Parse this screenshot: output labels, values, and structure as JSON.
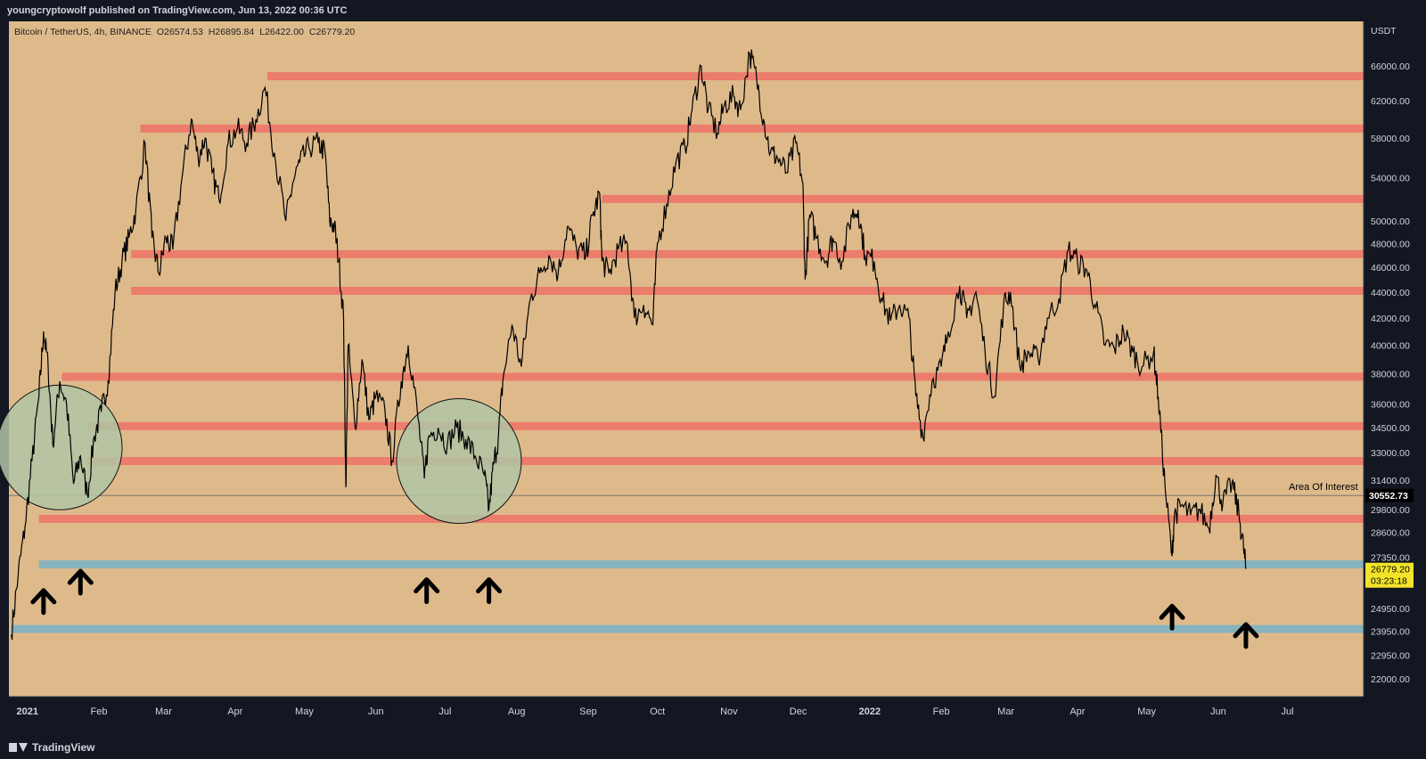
{
  "header": {
    "published_by": "youngcryptowolf published on TradingView.com, Jun 13, 2022 00:36 UTC"
  },
  "footer": {
    "brand": "TradingView"
  },
  "chart_data": {
    "type": "line",
    "symbol_line": {
      "name": "Bitcoin / TetherUS, 4h, BINANCE",
      "open": "O26574.53",
      "high": "H26895.84",
      "low": "L26422.00",
      "close": "C26779.20"
    },
    "y_axis": {
      "unit_label": "USDT",
      "scale": "log",
      "range": [
        21300,
        71500
      ],
      "ticks": [
        66000,
        62000,
        58000,
        54000,
        50000,
        48000,
        46000,
        44000,
        42000,
        40000,
        38000,
        36000,
        34500,
        33000,
        31400,
        29800,
        28600,
        27350,
        24950,
        23950,
        22950,
        22000
      ]
    },
    "x_axis": {
      "range": [
        "2020-12-24",
        "2022-08-03"
      ],
      "ticks": [
        {
          "date": "2021-01-01",
          "label": "2021",
          "bold": true
        },
        {
          "date": "2021-02-01",
          "label": "Feb"
        },
        {
          "date": "2021-03-01",
          "label": "Mar"
        },
        {
          "date": "2021-04-01",
          "label": "Apr"
        },
        {
          "date": "2021-05-01",
          "label": "May"
        },
        {
          "date": "2021-06-01",
          "label": "Jun"
        },
        {
          "date": "2021-07-01",
          "label": "Jul"
        },
        {
          "date": "2021-08-01",
          "label": "Aug"
        },
        {
          "date": "2021-09-01",
          "label": "Sep"
        },
        {
          "date": "2021-10-01",
          "label": "Oct"
        },
        {
          "date": "2021-11-01",
          "label": "Nov"
        },
        {
          "date": "2021-12-01",
          "label": "Dec"
        },
        {
          "date": "2022-01-01",
          "label": "2022",
          "bold": true
        },
        {
          "date": "2022-02-01",
          "label": "Feb"
        },
        {
          "date": "2022-03-01",
          "label": "Mar"
        },
        {
          "date": "2022-04-01",
          "label": "Apr"
        },
        {
          "date": "2022-05-01",
          "label": "May"
        },
        {
          "date": "2022-06-01",
          "label": "Jun"
        },
        {
          "date": "2022-07-01",
          "label": "Jul"
        }
      ]
    },
    "series": [
      {
        "values": [
          [
            "2020-12-25",
            23800
          ],
          [
            "2020-12-28",
            26500
          ],
          [
            "2020-12-31",
            28900
          ],
          [
            "2021-01-03",
            32500
          ],
          [
            "2021-01-06",
            36500
          ],
          [
            "2021-01-08",
            41000
          ],
          [
            "2021-01-10",
            38500
          ],
          [
            "2021-01-12",
            33500
          ],
          [
            "2021-01-15",
            37500
          ],
          [
            "2021-01-18",
            36000
          ],
          [
            "2021-01-21",
            31200
          ],
          [
            "2021-01-24",
            32800
          ],
          [
            "2021-01-27",
            30600
          ],
          [
            "2021-01-30",
            34000
          ],
          [
            "2021-02-02",
            35500
          ],
          [
            "2021-02-05",
            37500
          ],
          [
            "2021-02-08",
            44000
          ],
          [
            "2021-02-11",
            46500
          ],
          [
            "2021-02-14",
            48500
          ],
          [
            "2021-02-17",
            51000
          ],
          [
            "2021-02-21",
            57500
          ],
          [
            "2021-02-24",
            48500
          ],
          [
            "2021-02-27",
            45500
          ],
          [
            "2021-03-02",
            48500
          ],
          [
            "2021-03-05",
            47500
          ],
          [
            "2021-03-09",
            54000
          ],
          [
            "2021-03-13",
            60000
          ],
          [
            "2021-03-16",
            56000
          ],
          [
            "2021-03-19",
            58000
          ],
          [
            "2021-03-22",
            54500
          ],
          [
            "2021-03-25",
            52000
          ],
          [
            "2021-03-29",
            57500
          ],
          [
            "2021-04-02",
            59000
          ],
          [
            "2021-04-06",
            57500
          ],
          [
            "2021-04-10",
            60000
          ],
          [
            "2021-04-14",
            63500
          ],
          [
            "2021-04-18",
            56500
          ],
          [
            "2021-04-23",
            50000
          ],
          [
            "2021-04-26",
            53500
          ],
          [
            "2021-04-29",
            55500
          ],
          [
            "2021-05-03",
            57000
          ],
          [
            "2021-05-07",
            57500
          ],
          [
            "2021-05-10",
            56500
          ],
          [
            "2021-05-12",
            50000
          ],
          [
            "2021-05-14",
            49500
          ],
          [
            "2021-05-16",
            46500
          ],
          [
            "2021-05-18",
            42000
          ],
          [
            "2021-05-19",
            31000
          ],
          [
            "2021-05-20",
            40000
          ],
          [
            "2021-05-23",
            34500
          ],
          [
            "2021-05-26",
            39000
          ],
          [
            "2021-05-29",
            35000
          ],
          [
            "2021-06-01",
            36500
          ],
          [
            "2021-06-05",
            35500
          ],
          [
            "2021-06-08",
            32500
          ],
          [
            "2021-06-12",
            37500
          ],
          [
            "2021-06-15",
            40000
          ],
          [
            "2021-06-19",
            35500
          ],
          [
            "2021-06-22",
            31500
          ],
          [
            "2021-06-24",
            34000
          ],
          [
            "2021-06-28",
            34500
          ],
          [
            "2021-07-02",
            33500
          ],
          [
            "2021-07-06",
            34500
          ],
          [
            "2021-07-10",
            33800
          ],
          [
            "2021-07-14",
            32800
          ],
          [
            "2021-07-18",
            31700
          ],
          [
            "2021-07-20",
            29800
          ],
          [
            "2021-07-22",
            32300
          ],
          [
            "2021-07-24",
            33800
          ],
          [
            "2021-07-26",
            37500
          ],
          [
            "2021-07-30",
            41500
          ],
          [
            "2021-08-03",
            38500
          ],
          [
            "2021-08-07",
            43500
          ],
          [
            "2021-08-11",
            45500
          ],
          [
            "2021-08-15",
            47000
          ],
          [
            "2021-08-19",
            45500
          ],
          [
            "2021-08-23",
            49500
          ],
          [
            "2021-08-27",
            47500
          ],
          [
            "2021-08-31",
            47000
          ],
          [
            "2021-09-03",
            50500
          ],
          [
            "2021-09-06",
            52500
          ],
          [
            "2021-09-07",
            46500
          ],
          [
            "2021-09-10",
            45500
          ],
          [
            "2021-09-14",
            47500
          ],
          [
            "2021-09-18",
            48000
          ],
          [
            "2021-09-21",
            42000
          ],
          [
            "2021-09-25",
            43000
          ],
          [
            "2021-09-29",
            41500
          ],
          [
            "2021-10-01",
            48000
          ],
          [
            "2021-10-05",
            51500
          ],
          [
            "2021-10-09",
            55500
          ],
          [
            "2021-10-13",
            57000
          ],
          [
            "2021-10-16",
            61000
          ],
          [
            "2021-10-20",
            66000
          ],
          [
            "2021-10-23",
            61000
          ],
          [
            "2021-10-27",
            58500
          ],
          [
            "2021-10-30",
            61500
          ],
          [
            "2021-11-03",
            62500
          ],
          [
            "2021-11-06",
            61000
          ],
          [
            "2021-11-10",
            67500
          ],
          [
            "2021-11-13",
            64500
          ],
          [
            "2021-11-16",
            60000
          ],
          [
            "2021-11-19",
            56500
          ],
          [
            "2021-11-22",
            56000
          ],
          [
            "2021-11-26",
            54500
          ],
          [
            "2021-11-30",
            57500
          ],
          [
            "2021-12-03",
            53500
          ],
          [
            "2021-12-04",
            45000
          ],
          [
            "2021-12-06",
            50500
          ],
          [
            "2021-12-09",
            48500
          ],
          [
            "2021-12-13",
            46500
          ],
          [
            "2021-12-16",
            48500
          ],
          [
            "2021-12-20",
            46500
          ],
          [
            "2021-12-24",
            50500
          ],
          [
            "2021-12-27",
            51000
          ],
          [
            "2021-12-30",
            47000
          ],
          [
            "2022-01-03",
            46500
          ],
          [
            "2022-01-06",
            43500
          ],
          [
            "2022-01-10",
            41800
          ],
          [
            "2022-01-14",
            43000
          ],
          [
            "2022-01-18",
            42000
          ],
          [
            "2022-01-21",
            36500
          ],
          [
            "2022-01-24",
            34000
          ],
          [
            "2022-01-28",
            37500
          ],
          [
            "2022-02-01",
            38500
          ],
          [
            "2022-02-04",
            41000
          ],
          [
            "2022-02-09",
            44500
          ],
          [
            "2022-02-12",
            42000
          ],
          [
            "2022-02-16",
            44000
          ],
          [
            "2022-02-20",
            39500
          ],
          [
            "2022-02-24",
            36500
          ],
          [
            "2022-02-28",
            43000
          ],
          [
            "2022-03-03",
            44000
          ],
          [
            "2022-03-07",
            38500
          ],
          [
            "2022-03-11",
            39500
          ],
          [
            "2022-03-15",
            39000
          ],
          [
            "2022-03-19",
            42000
          ],
          [
            "2022-03-24",
            43500
          ],
          [
            "2022-03-28",
            47500
          ],
          [
            "2022-04-01",
            46500
          ],
          [
            "2022-04-05",
            45800
          ],
          [
            "2022-04-09",
            42800
          ],
          [
            "2022-04-13",
            40000
          ],
          [
            "2022-04-17",
            39800
          ],
          [
            "2022-04-21",
            41000
          ],
          [
            "2022-04-25",
            39500
          ],
          [
            "2022-04-29",
            38500
          ],
          [
            "2022-05-04",
            39500
          ],
          [
            "2022-05-06",
            36500
          ],
          [
            "2022-05-09",
            31000
          ],
          [
            "2022-05-12",
            27400
          ],
          [
            "2022-05-13",
            29500
          ],
          [
            "2022-05-16",
            30000
          ],
          [
            "2022-05-20",
            29500
          ],
          [
            "2022-05-24",
            29800
          ],
          [
            "2022-05-28",
            28800
          ],
          [
            "2022-05-31",
            31700
          ],
          [
            "2022-06-03",
            30100
          ],
          [
            "2022-06-07",
            31300
          ],
          [
            "2022-06-10",
            29500
          ],
          [
            "2022-06-12",
            27800
          ],
          [
            "2022-06-13",
            26780
          ]
        ]
      }
    ],
    "resistance_levels": [
      {
        "price": 64800,
        "from": "2021-04-15"
      },
      {
        "price": 59000,
        "from": "2021-02-19"
      },
      {
        "price": 52000,
        "from": "2021-09-07"
      },
      {
        "price": 47100,
        "from": "2021-02-15"
      },
      {
        "price": 44100,
        "from": "2021-02-15"
      },
      {
        "price": 37800,
        "from": "2021-01-16"
      },
      {
        "price": 34600,
        "from": "2021-01-27"
      },
      {
        "price": 32500,
        "from": "2021-01-27"
      },
      {
        "price": 29300,
        "from": "2021-01-06"
      }
    ],
    "support_levels": [
      {
        "price": 27000,
        "from": "2021-01-06"
      },
      {
        "price": 24050,
        "from": "2020-12-25"
      }
    ],
    "area_of_interest": {
      "price": 30552.73,
      "label": "Area Of Interest",
      "price_label": "30552.73"
    },
    "current_price": {
      "price": 26779.2,
      "label": "26779.20",
      "countdown": "03:23:18"
    },
    "circles": [
      {
        "date": "2021-01-15",
        "price": 33300
      },
      {
        "date": "2021-07-07",
        "price": 32500
      }
    ],
    "arrows": [
      {
        "date": "2021-01-08",
        "price": 25400
      },
      {
        "date": "2021-01-24",
        "price": 26300
      },
      {
        "date": "2021-06-23",
        "price": 25900
      },
      {
        "date": "2021-07-20",
        "price": 25900
      },
      {
        "date": "2022-05-12",
        "price": 24700
      },
      {
        "date": "2022-06-13",
        "price": 23900
      }
    ],
    "colors": {
      "background": "#deba8b",
      "price_line": "#000000",
      "resistance": "#ec7c6c",
      "support": "#86b3bd",
      "circle_fill": "#b0c4a4",
      "aoi_line": "#6b6b6b",
      "axis_text": "#d1d4dc",
      "current_price_tag": "#f3e42a"
    }
  }
}
